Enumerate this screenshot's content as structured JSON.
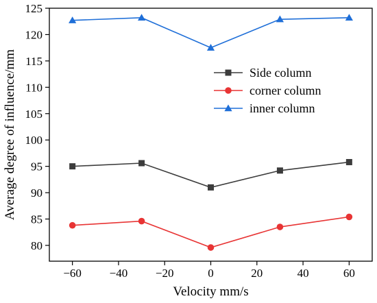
{
  "chart_data": {
    "type": "line",
    "title": "",
    "xlabel": "Velocity mm/s",
    "ylabel": "Average degree of influence/mm",
    "x": [
      -60,
      -30,
      0,
      30,
      60
    ],
    "xlim": [
      -70,
      70
    ],
    "ylim": [
      77,
      125
    ],
    "xticks": [
      -60,
      -40,
      -20,
      0,
      20,
      40,
      60
    ],
    "xtick_labels": [
      "−60",
      "−40",
      "−20",
      "0",
      "20",
      "40",
      "60"
    ],
    "yticks": [
      80,
      85,
      90,
      95,
      100,
      105,
      110,
      115,
      120,
      125
    ],
    "ytick_labels": [
      "80",
      "85",
      "90",
      "95",
      "100",
      "105",
      "110",
      "115",
      "120",
      "125"
    ],
    "grid": false,
    "legend_position": "upper-right",
    "series": [
      {
        "name": "Side column",
        "color": "#3c3c3c",
        "marker": "square",
        "values": [
          95.0,
          95.6,
          91.0,
          94.2,
          95.8
        ]
      },
      {
        "name": "corner column",
        "color": "#e83434",
        "marker": "circle",
        "values": [
          83.8,
          84.6,
          79.6,
          83.5,
          85.4
        ]
      },
      {
        "name": "inner column",
        "color": "#1f6fd8",
        "marker": "triangle",
        "values": [
          122.7,
          123.2,
          117.5,
          122.9,
          123.2
        ]
      }
    ]
  }
}
